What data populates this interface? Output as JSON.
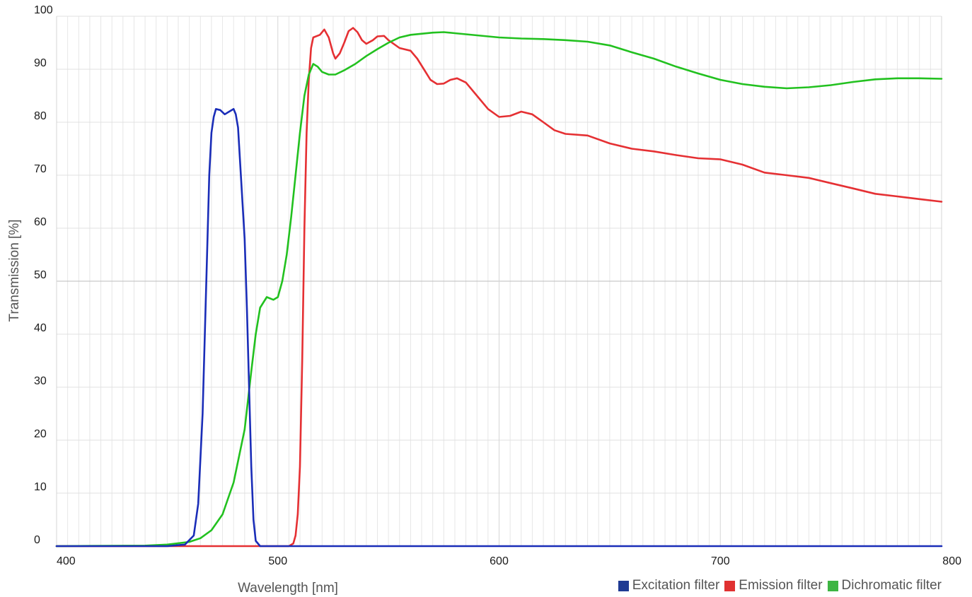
{
  "chart_data": {
    "type": "line",
    "xlabel": "Wavelength [nm]",
    "ylabel": "Transmission [%]",
    "xlim": [
      400,
      800
    ],
    "ylim": [
      0,
      100
    ],
    "x_ticks": [
      400,
      500,
      600,
      700,
      800
    ],
    "y_ticks": [
      0,
      10,
      20,
      30,
      40,
      50,
      60,
      70,
      80,
      90,
      100
    ],
    "grid": true,
    "legend_position": "bottom-right",
    "series": [
      {
        "name": "Excitation filter",
        "color": "#1a2db8",
        "points": [
          [
            400,
            0
          ],
          [
            450,
            0
          ],
          [
            458,
            0.3
          ],
          [
            462,
            2
          ],
          [
            464,
            8
          ],
          [
            466,
            25
          ],
          [
            468,
            55
          ],
          [
            469,
            70
          ],
          [
            470,
            78
          ],
          [
            471,
            81
          ],
          [
            472,
            82.5
          ],
          [
            474,
            82.3
          ],
          [
            476,
            81.5
          ],
          [
            478,
            82
          ],
          [
            480,
            82.5
          ],
          [
            481,
            81.5
          ],
          [
            482,
            79
          ],
          [
            483,
            72
          ],
          [
            484,
            65
          ],
          [
            485,
            58
          ],
          [
            486,
            45
          ],
          [
            487,
            30
          ],
          [
            488,
            15
          ],
          [
            489,
            5
          ],
          [
            490,
            1
          ],
          [
            492,
            0
          ],
          [
            800,
            0
          ]
        ]
      },
      {
        "name": "Emission filter",
        "color": "#e53033",
        "points": [
          [
            400,
            0
          ],
          [
            505,
            0
          ],
          [
            507,
            0.5
          ],
          [
            508,
            2
          ],
          [
            509,
            6
          ],
          [
            510,
            15
          ],
          [
            511,
            35
          ],
          [
            512,
            60
          ],
          [
            513,
            78
          ],
          [
            514,
            88
          ],
          [
            515,
            94
          ],
          [
            516,
            96
          ],
          [
            519,
            96.5
          ],
          [
            521,
            97.5
          ],
          [
            523,
            96
          ],
          [
            525,
            93
          ],
          [
            526,
            92
          ],
          [
            528,
            93
          ],
          [
            530,
            95
          ],
          [
            532,
            97.2
          ],
          [
            534,
            97.8
          ],
          [
            536,
            97
          ],
          [
            538,
            95.5
          ],
          [
            540,
            94.8
          ],
          [
            543,
            95.5
          ],
          [
            545,
            96.2
          ],
          [
            548,
            96.3
          ],
          [
            550,
            95.5
          ],
          [
            555,
            94
          ],
          [
            560,
            93.5
          ],
          [
            563,
            92
          ],
          [
            566,
            90
          ],
          [
            569,
            88
          ],
          [
            572,
            87.2
          ],
          [
            575,
            87.3
          ],
          [
            578,
            88
          ],
          [
            581,
            88.3
          ],
          [
            585,
            87.5
          ],
          [
            590,
            85
          ],
          [
            595,
            82.5
          ],
          [
            600,
            81
          ],
          [
            605,
            81.2
          ],
          [
            610,
            82
          ],
          [
            615,
            81.5
          ],
          [
            620,
            80
          ],
          [
            625,
            78.5
          ],
          [
            630,
            77.8
          ],
          [
            640,
            77.5
          ],
          [
            650,
            76
          ],
          [
            660,
            75
          ],
          [
            670,
            74.5
          ],
          [
            680,
            73.8
          ],
          [
            690,
            73.2
          ],
          [
            700,
            73
          ],
          [
            710,
            72
          ],
          [
            720,
            70.5
          ],
          [
            730,
            70
          ],
          [
            740,
            69.5
          ],
          [
            750,
            68.5
          ],
          [
            760,
            67.5
          ],
          [
            770,
            66.5
          ],
          [
            780,
            66
          ],
          [
            790,
            65.5
          ],
          [
            800,
            65
          ]
        ]
      },
      {
        "name": "Dichromatic filter",
        "color": "#22c11f",
        "points": [
          [
            400,
            0
          ],
          [
            440,
            0.1
          ],
          [
            450,
            0.3
          ],
          [
            460,
            0.8
          ],
          [
            465,
            1.5
          ],
          [
            470,
            3
          ],
          [
            475,
            6
          ],
          [
            480,
            12
          ],
          [
            485,
            22
          ],
          [
            488,
            33
          ],
          [
            490,
            40
          ],
          [
            492,
            45
          ],
          [
            495,
            47
          ],
          [
            498,
            46.5
          ],
          [
            500,
            47
          ],
          [
            502,
            50
          ],
          [
            504,
            55
          ],
          [
            506,
            62
          ],
          [
            508,
            70
          ],
          [
            510,
            78
          ],
          [
            512,
            85
          ],
          [
            514,
            89
          ],
          [
            516,
            91
          ],
          [
            518,
            90.5
          ],
          [
            520,
            89.5
          ],
          [
            523,
            89
          ],
          [
            526,
            89
          ],
          [
            530,
            89.8
          ],
          [
            535,
            91
          ],
          [
            540,
            92.5
          ],
          [
            545,
            93.8
          ],
          [
            550,
            95
          ],
          [
            555,
            96
          ],
          [
            560,
            96.5
          ],
          [
            570,
            96.9
          ],
          [
            575,
            97
          ],
          [
            580,
            96.8
          ],
          [
            590,
            96.4
          ],
          [
            600,
            96
          ],
          [
            610,
            95.8
          ],
          [
            620,
            95.7
          ],
          [
            630,
            95.5
          ],
          [
            640,
            95.2
          ],
          [
            650,
            94.5
          ],
          [
            660,
            93.2
          ],
          [
            670,
            92
          ],
          [
            680,
            90.5
          ],
          [
            690,
            89.2
          ],
          [
            700,
            88
          ],
          [
            710,
            87.2
          ],
          [
            720,
            86.7
          ],
          [
            730,
            86.4
          ],
          [
            740,
            86.6
          ],
          [
            750,
            87
          ],
          [
            760,
            87.6
          ],
          [
            770,
            88.1
          ],
          [
            780,
            88.3
          ],
          [
            790,
            88.3
          ],
          [
            800,
            88.2
          ]
        ]
      }
    ]
  }
}
